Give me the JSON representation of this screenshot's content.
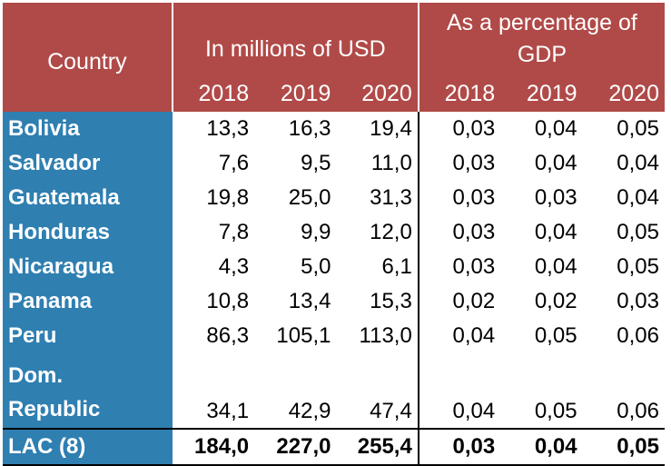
{
  "header": {
    "country_label": "Country",
    "group_millions": "In millions of USD",
    "group_percentage": "As a percentage of GDP",
    "years_millions": [
      "2018",
      "2019",
      "2020"
    ],
    "years_percentage": [
      "2018",
      "2019",
      "2020"
    ]
  },
  "rows": [
    {
      "country": "Bolivia",
      "usd": [
        "13,3",
        "16,3",
        "19,4"
      ],
      "pct": [
        "0,03",
        "0,04",
        "0,05"
      ]
    },
    {
      "country": "Salvador",
      "usd": [
        "7,6",
        "9,5",
        "11,0"
      ],
      "pct": [
        "0,03",
        "0,04",
        "0,04"
      ]
    },
    {
      "country": "Guatemala",
      "usd": [
        "19,8",
        "25,0",
        "31,3"
      ],
      "pct": [
        "0,03",
        "0,03",
        "0,04"
      ]
    },
    {
      "country": "Honduras",
      "usd": [
        "7,8",
        "9,9",
        "12,0"
      ],
      "pct": [
        "0,03",
        "0,04",
        "0,05"
      ]
    },
    {
      "country": "Nicaragua",
      "usd": [
        "4,3",
        "5,0",
        "6,1"
      ],
      "pct": [
        "0,03",
        "0,04",
        "0,05"
      ]
    },
    {
      "country": "Panama",
      "usd": [
        "10,8",
        "13,4",
        "15,3"
      ],
      "pct": [
        "0,02",
        "0,02",
        "0,03"
      ]
    },
    {
      "country": "Peru",
      "usd": [
        "86,3",
        "105,1",
        "113,0"
      ],
      "pct": [
        "0,04",
        "0,05",
        "0,06"
      ]
    },
    {
      "country": "Dom. Republic",
      "country_line1": "Dom.",
      "country_line2": "Republic",
      "usd": [
        "34,1",
        "42,9",
        "47,4"
      ],
      "pct": [
        "0,04",
        "0,05",
        "0,06"
      ]
    }
  ],
  "total": {
    "country": "LAC (8)",
    "usd": [
      "184,0",
      "227,0",
      "255,4"
    ],
    "pct": [
      "0,03",
      "0,04",
      "0,05"
    ]
  },
  "colors": {
    "header_bg": "#b04a48",
    "country_bg": "#2f7fb1",
    "header_text": "#ffffff"
  }
}
